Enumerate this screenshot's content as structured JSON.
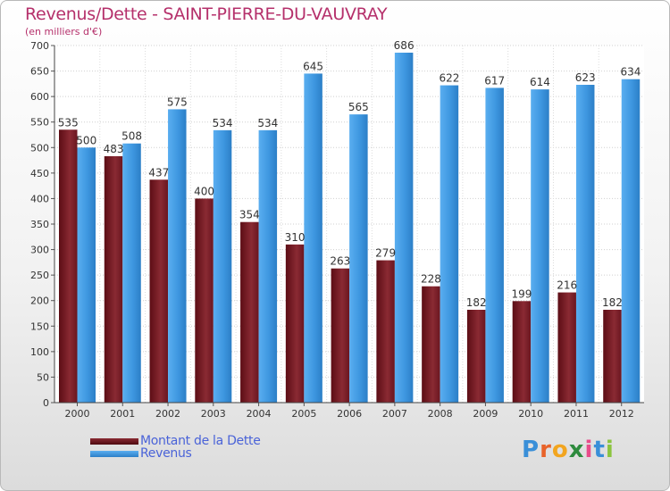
{
  "chart_data": {
    "type": "bar",
    "title": "Revenus/Dette - SAINT-PIERRE-DU-VAUVRAY",
    "subtitle": "(en milliers d'€)",
    "categories": [
      "2000",
      "2001",
      "2002",
      "2003",
      "2004",
      "2005",
      "2006",
      "2007",
      "2008",
      "2009",
      "2010",
      "2011",
      "2012"
    ],
    "series": [
      {
        "name": "Montant de la Dette",
        "values": [
          535,
          483,
          437,
          400,
          354,
          310,
          263,
          279,
          228,
          182,
          199,
          216,
          182
        ],
        "color": "#7a1e28"
      },
      {
        "name": "Revenus",
        "values": [
          500,
          508,
          575,
          534,
          534,
          645,
          565,
          686,
          622,
          617,
          614,
          623,
          634
        ],
        "color": "#3e97e0"
      }
    ],
    "ylim": [
      0,
      700
    ],
    "yticks": [
      0,
      50,
      100,
      150,
      200,
      250,
      300,
      350,
      400,
      450,
      500,
      550,
      600,
      650,
      700
    ],
    "grid": true,
    "legend_position": "bottom-left"
  },
  "logo": {
    "text": "Proxiti",
    "letters": [
      "P",
      "r",
      "o",
      "x",
      "i",
      "t",
      "i"
    ],
    "colors": [
      "#3a8fd8",
      "#e8632a",
      "#f2a51f",
      "#2e8b3e",
      "#e84c8a",
      "#3a8fd8",
      "#8bc43f"
    ]
  }
}
